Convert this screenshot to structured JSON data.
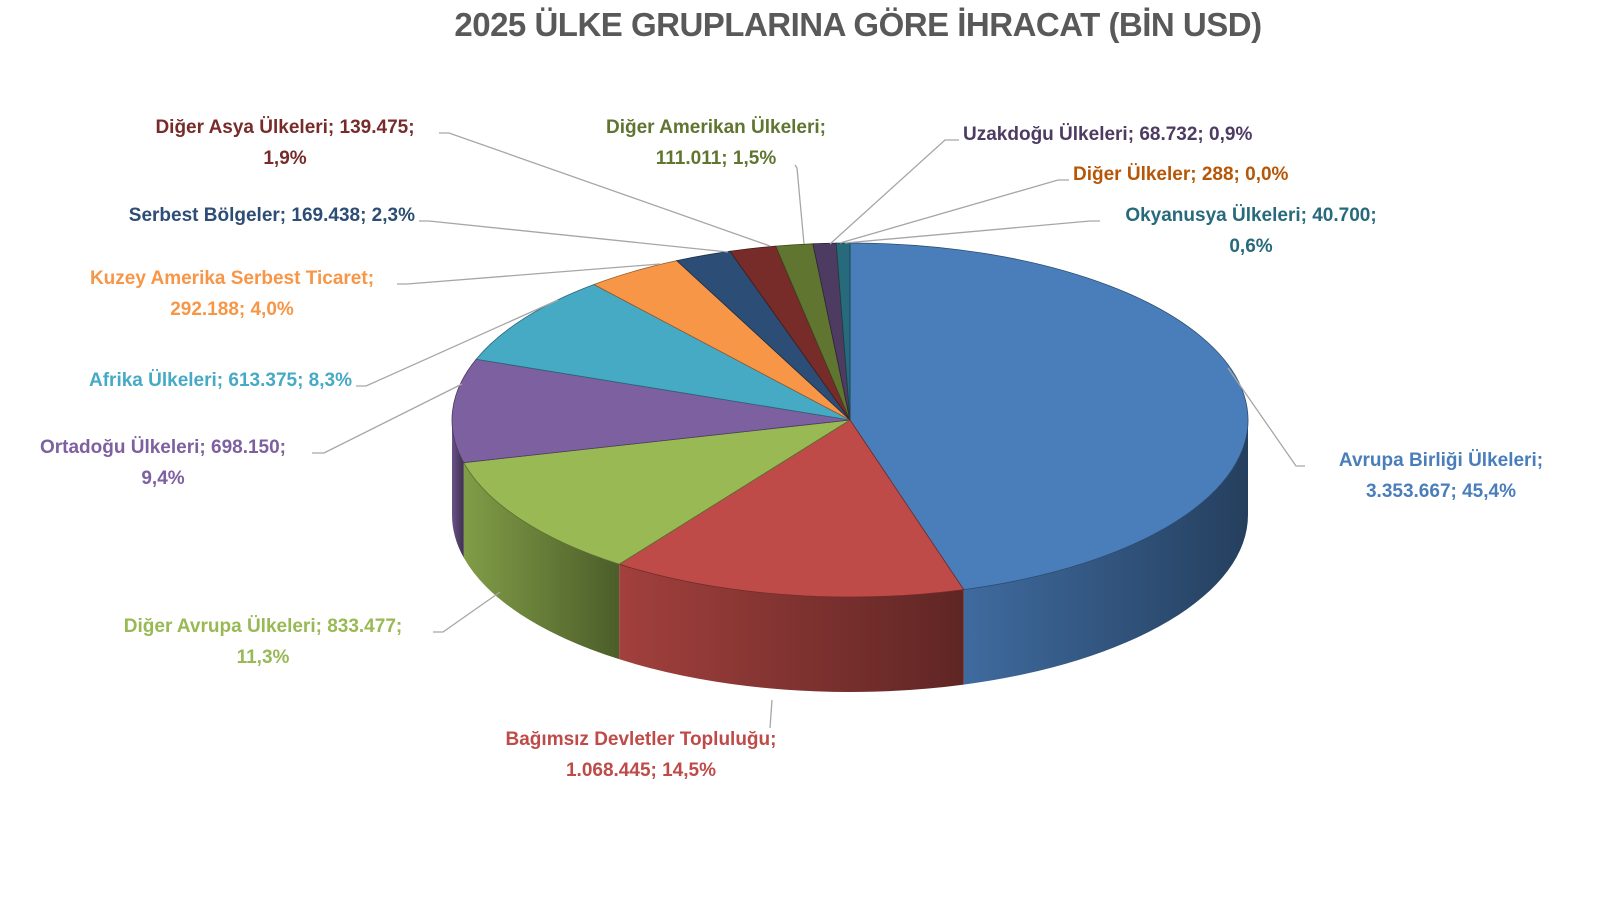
{
  "chart_data": {
    "type": "pie",
    "style": "3d",
    "title": "2025 ÜLKE GRUPLARINA GÖRE İHRACAT (BİN USD)",
    "legend": "none",
    "categories": [
      "Avrupa Birliği Ülkeleri",
      "Bağımsız Devletler Topluluğu",
      "Diğer Avrupa Ülkeleri",
      "Ortadoğu Ülkeleri",
      "Afrika Ülkeleri",
      "Kuzey Amerika Serbest Ticaret",
      "Serbest Bölgeler",
      "Diğer Asya Ülkeleri",
      "Diğer Amerikan Ülkeleri",
      "Uzakdoğu Ülkeleri",
      "Diğer Ülkeler",
      "Okyanusya Ülkeleri"
    ],
    "values": [
      3353667,
      1068445,
      833477,
      698150,
      613375,
      292188,
      169438,
      139475,
      111011,
      68732,
      288,
      40700
    ],
    "value_labels": [
      "3.353.667",
      "1.068.445",
      "833.477",
      "698.150",
      "613.375",
      "292.188",
      "169.438",
      "139.475",
      "111.011",
      "68.732",
      "288",
      "40.700"
    ],
    "percent_labels": [
      "45,4%",
      "14,5%",
      "11,3%",
      "9,4%",
      "8,3%",
      "4,0%",
      "2,3%",
      "1,9%",
      "1,5%",
      "0,9%",
      "0,0%",
      "0,6%"
    ],
    "colors": [
      "#4a7ebb",
      "#be4b48",
      "#98b954",
      "#7d60a0",
      "#46aac5",
      "#f79646",
      "#2c4d75",
      "#772c2a",
      "#5f7530",
      "#4d3b62",
      "#b65708",
      "#276a7c"
    ],
    "label_colors": [
      "#4a7ebb",
      "#be4b48",
      "#98b954",
      "#7d60a0",
      "#46aac5",
      "#f79646",
      "#2c4d75",
      "#772c2a",
      "#5f7530",
      "#4d3b62",
      "#b65708",
      "#276a7c"
    ]
  }
}
